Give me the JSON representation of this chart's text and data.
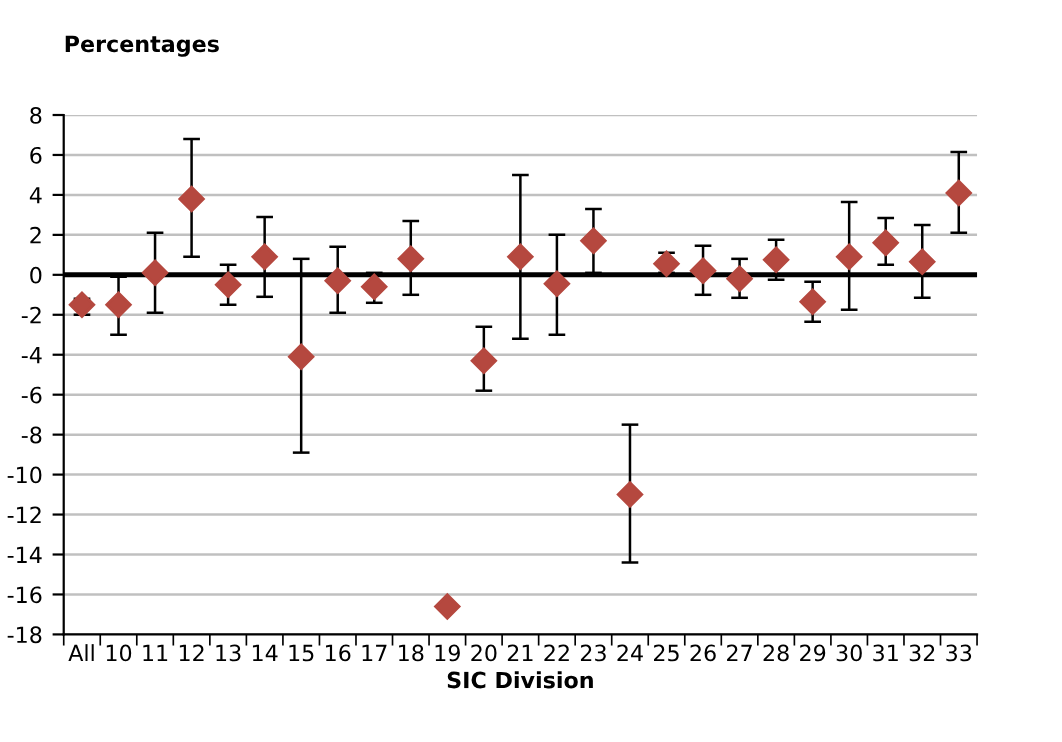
{
  "chart_data": {
    "type": "scatter",
    "ylabel": "Percentages",
    "xlabel": "SIC Division",
    "categories": [
      "All",
      "10",
      "11",
      "12",
      "13",
      "14",
      "15",
      "16",
      "17",
      "18",
      "19",
      "20",
      "21",
      "22",
      "23",
      "24",
      "25",
      "26",
      "27",
      "28",
      "29",
      "30",
      "31",
      "32",
      "33"
    ],
    "series": [
      {
        "color": "#b5483f",
        "values": [
          -1.5,
          -1.5,
          0.1,
          3.8,
          -0.5,
          0.9,
          -4.1,
          -0.3,
          -0.6,
          0.8,
          -16.6,
          -4.3,
          0.9,
          -0.45,
          1.7,
          -11.0,
          0.55,
          0.2,
          -0.2,
          0.75,
          -1.35,
          0.9,
          1.6,
          0.65,
          4.1
        ],
        "errors": [
          [
            -2.0,
            -1.2
          ],
          [
            -3.0,
            -0.1
          ],
          [
            -1.9,
            2.1
          ],
          [
            0.9,
            6.8
          ],
          [
            -1.5,
            0.5
          ],
          [
            -1.1,
            2.9
          ],
          [
            -8.9,
            0.8
          ],
          [
            -1.9,
            1.4
          ],
          [
            -1.4,
            0.1
          ],
          [
            -1.0,
            2.7
          ],
          null,
          [
            -5.8,
            -2.6
          ],
          [
            -3.2,
            5.0
          ],
          [
            -3.0,
            2.0
          ],
          [
            0.1,
            3.3
          ],
          [
            -14.4,
            -7.5
          ],
          [
            0.1,
            1.1
          ],
          [
            -1.0,
            1.45
          ],
          [
            -1.15,
            0.8
          ],
          [
            -0.25,
            1.75
          ],
          [
            -2.35,
            -0.35
          ],
          [
            -1.75,
            3.65
          ],
          [
            0.5,
            2.85
          ],
          [
            -1.15,
            2.5
          ],
          [
            2.1,
            6.15
          ]
        ]
      }
    ],
    "ylim": [
      -18,
      8
    ],
    "yticks": [
      -18,
      -16,
      -14,
      -12,
      -10,
      -8,
      -6,
      -4,
      -2,
      0,
      2,
      4,
      6,
      8
    ],
    "ref_lines": [
      {
        "axis": "y",
        "value": 0,
        "color": "#000000"
      }
    ],
    "grid": "y",
    "marker": "diamond",
    "legend": false
  }
}
